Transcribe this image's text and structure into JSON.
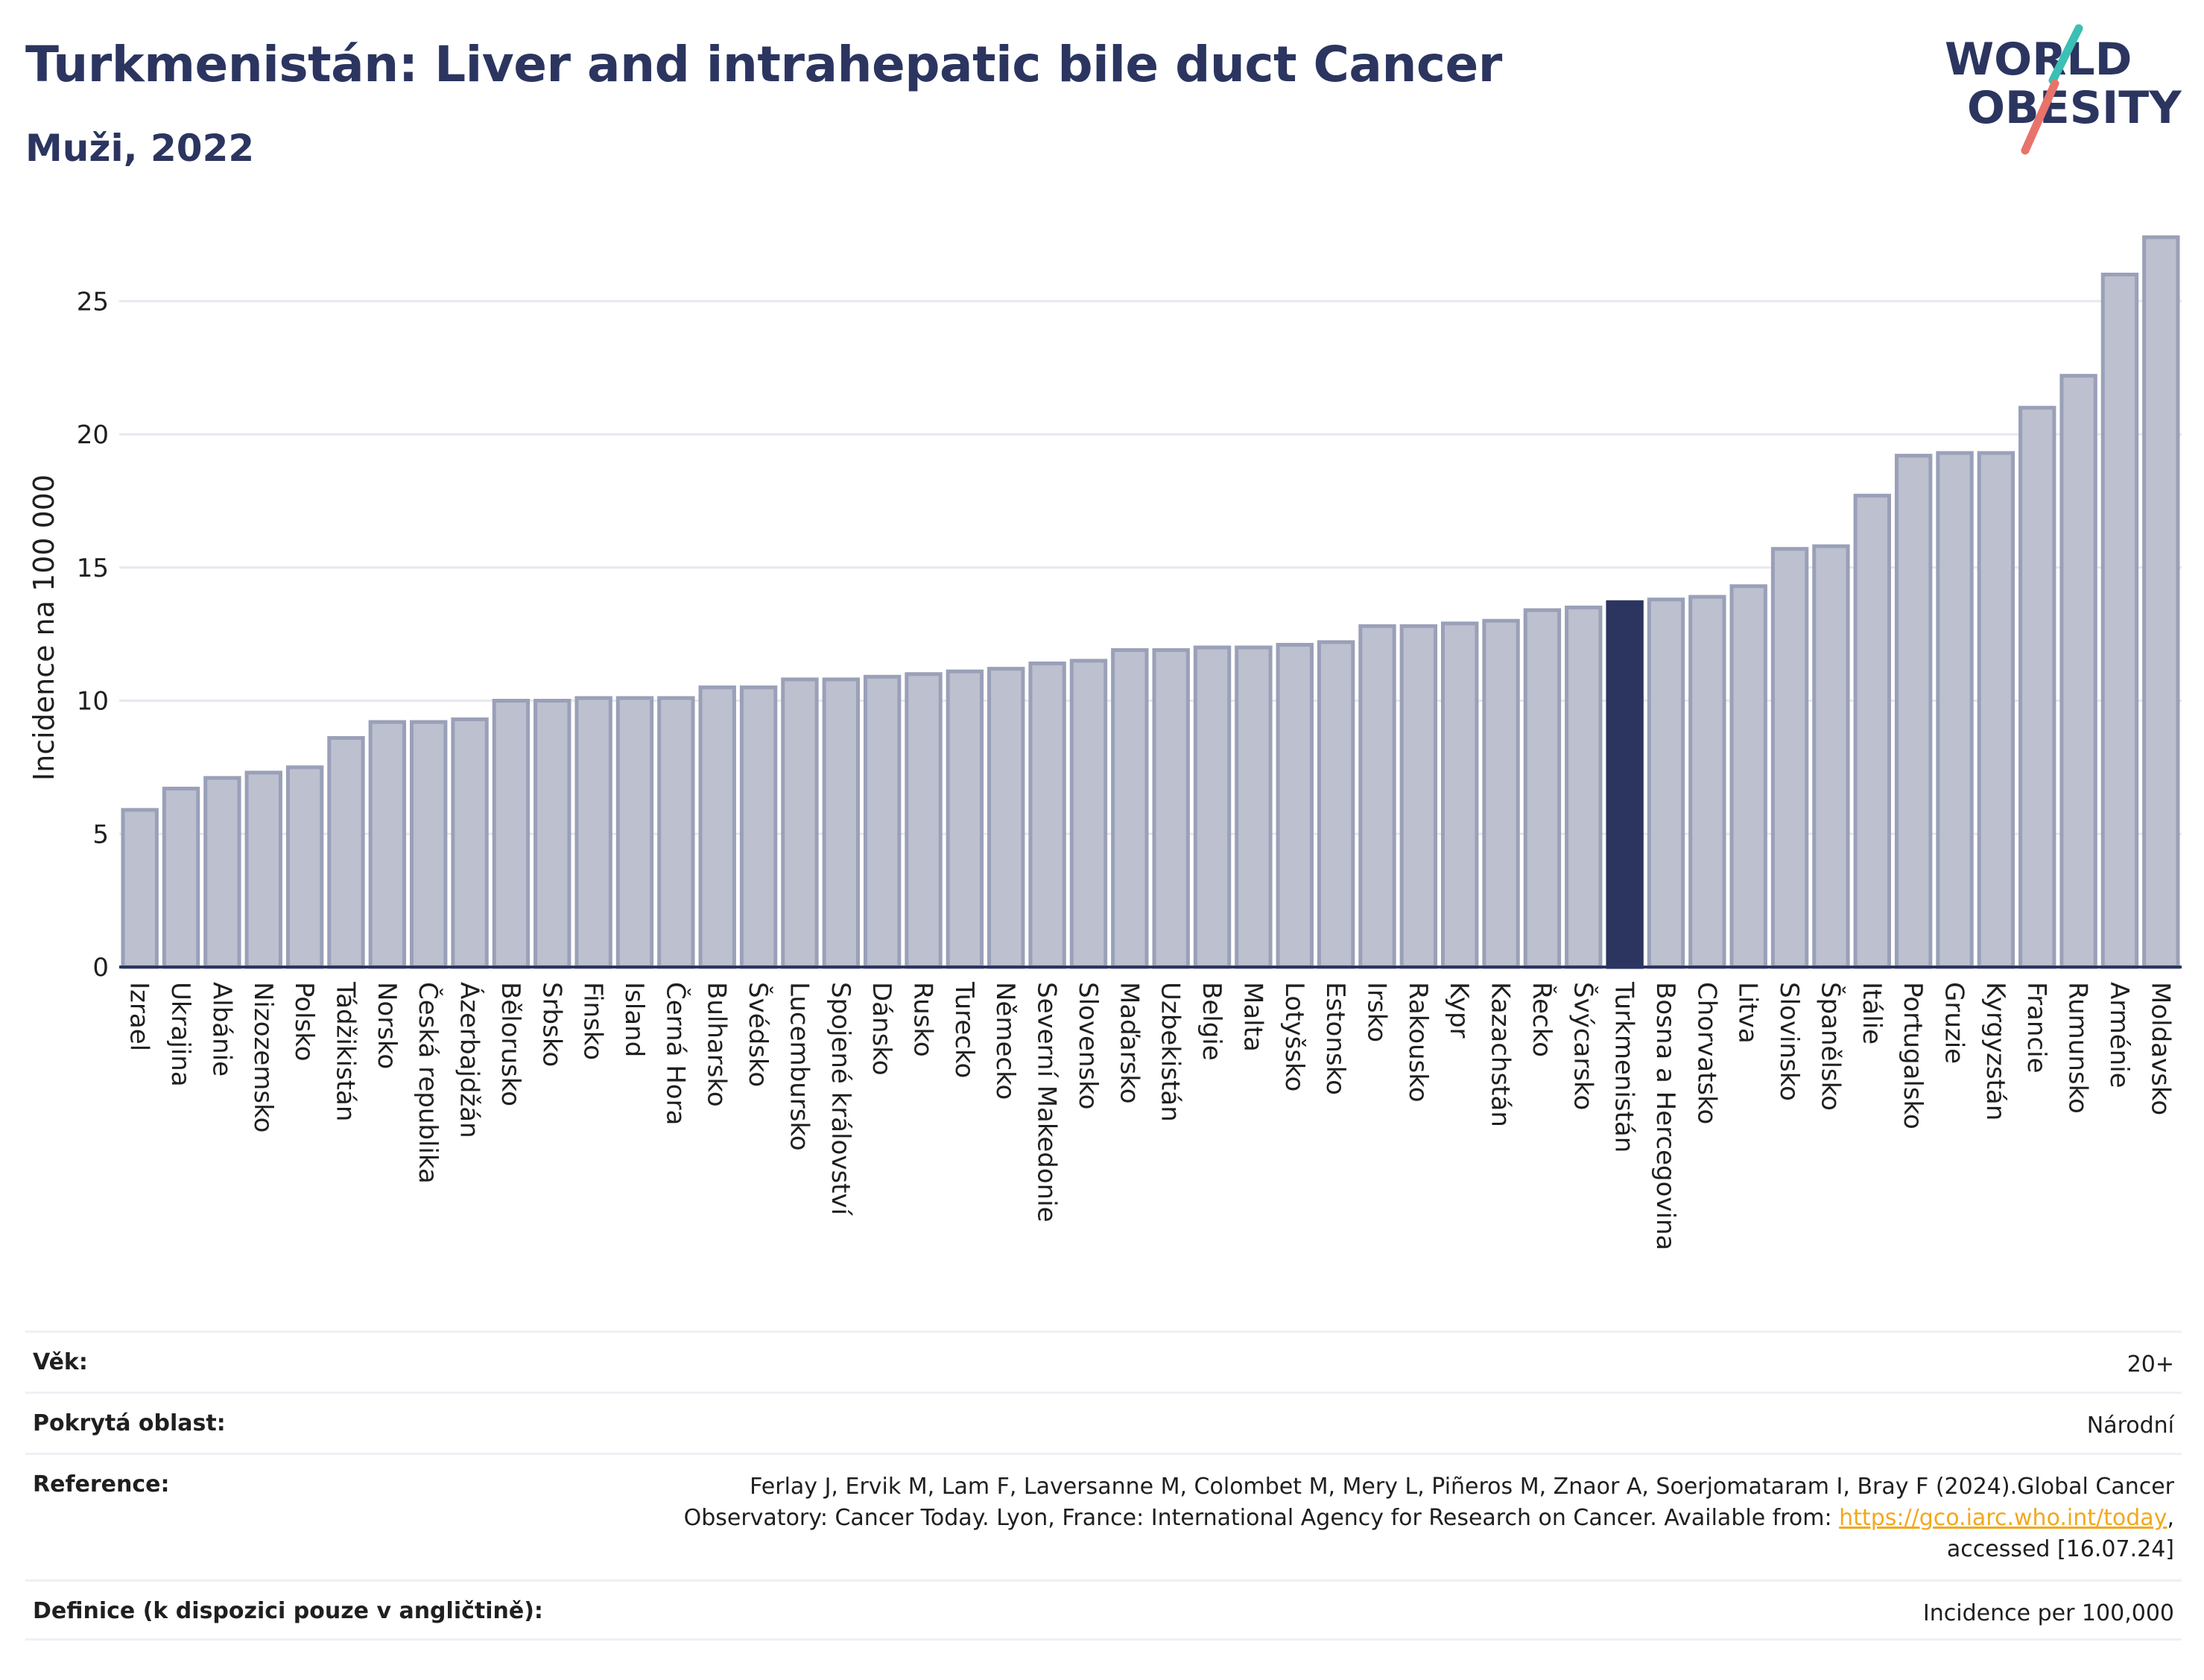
{
  "header": {
    "title": "Turkmenistán: Liver and intrahepatic bile duct Cancer",
    "subtitle": "Muži, 2022"
  },
  "logo": {
    "line1": "WORLD",
    "line2": "OBESITY",
    "text_color": "#2b3560",
    "slash_colors": [
      "#3cbfb4",
      "#e8736a"
    ]
  },
  "chart_data": {
    "type": "bar",
    "ylabel": "Incidence na 100 000",
    "ylim": [
      0,
      28
    ],
    "yticks": [
      0,
      5,
      10,
      15,
      20,
      25
    ],
    "grid": true,
    "categories": [
      "Izrael",
      "Ukrajina",
      "Albánie",
      "Nizozemsko",
      "Polsko",
      "Tádžikistán",
      "Norsko",
      "Česká republika",
      "Ázerbajdžán",
      "Bělorusko",
      "Srbsko",
      "Finsko",
      "Island",
      "Černá Hora",
      "Bulharsko",
      "Švédsko",
      "Lucembursko",
      "Spojené království",
      "Dánsko",
      "Rusko",
      "Turecko",
      "Německo",
      "Severní Makedonie",
      "Slovensko",
      "Maďarsko",
      "Uzbekistán",
      "Belgie",
      "Malta",
      "Lotyšsko",
      "Estonsko",
      "Irsko",
      "Rakousko",
      "Kypr",
      "Kazachstán",
      "Řecko",
      "Švýcarsko",
      "Turkmenistán",
      "Bosna a Hercegovina",
      "Chorvatsko",
      "Litva",
      "Slovinsko",
      "Španělsko",
      "Itálie",
      "Portugalsko",
      "Gruzie",
      "Kyrgyzstán",
      "Francie",
      "Rumunsko",
      "Arménie",
      "Moldavsko"
    ],
    "values": [
      5.9,
      6.7,
      7.1,
      7.3,
      7.5,
      8.6,
      9.2,
      9.2,
      9.3,
      10.0,
      10.0,
      10.1,
      10.1,
      10.1,
      10.5,
      10.5,
      10.8,
      10.8,
      10.9,
      11.0,
      11.1,
      11.2,
      11.4,
      11.5,
      11.9,
      11.9,
      12.0,
      12.0,
      12.1,
      12.2,
      12.8,
      12.8,
      12.9,
      13.0,
      13.4,
      13.5,
      13.7,
      13.8,
      13.9,
      14.3,
      15.7,
      15.8,
      17.7,
      19.2,
      19.3,
      19.3,
      21.0,
      22.2,
      26.0,
      27.4
    ],
    "highlight": "Turkmenistán",
    "colors": {
      "bar": "#bcc0cf",
      "bar_edge": "#9aa0b8",
      "highlight": "#2b3560",
      "axis": "#2b3560",
      "grid": "#e6e8ee"
    }
  },
  "info": [
    {
      "label": "Věk:",
      "value": "20+"
    },
    {
      "label": "Pokrytá oblast:",
      "value": "Národní"
    },
    {
      "label": "Reference:",
      "value_lines": [
        "Ferlay J, Ervik M, Lam F, Laversanne M, Colombet M, Mery L, Piñeros M, Znaor A, Soerjomataram I, Bray F (2024).Global Cancer",
        "Observatory: Cancer Today. Lyon, France: International Agency for Research on Cancer. Available from: ",
        "accessed [16.07.24]"
      ],
      "link": "https://gco.iarc.who.int/today",
      "link_suffix": ","
    },
    {
      "label": "Definice (k dispozici pouze v angličtině):",
      "value": "Incidence per 100,000"
    }
  ]
}
